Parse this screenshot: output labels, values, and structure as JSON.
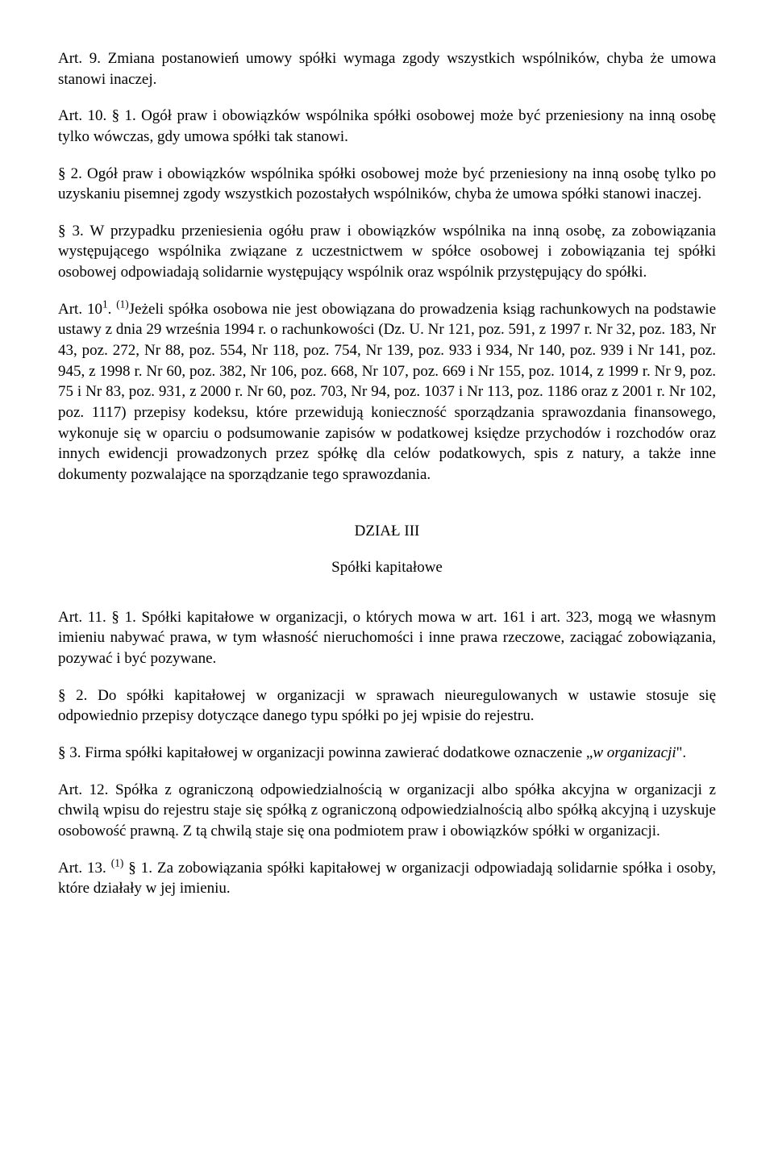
{
  "p1": "Art. 9. Zmiana postanowień umowy spółki wymaga zgody wszystkich wspólników, chyba że umowa stanowi inaczej.",
  "p2": "Art. 10. § 1. Ogół praw i obowiązków wspólnika spółki osobowej może być przeniesiony na inną osobę tylko wówczas, gdy umowa spółki tak stanowi.",
  "p3": "§ 2. Ogół praw i obowiązków wspólnika spółki osobowej może być przeniesiony na inną osobę tylko po uzyskaniu pisemnej zgody wszystkich pozostałych wspólników, chyba że umowa spółki stanowi inaczej.",
  "p4": "§ 3. W przypadku przeniesienia ogółu praw i obowiązków wspólnika na inną osobę, za zobowiązania występującego wspólnika związane z uczestnictwem w spółce osobowej i zobowiązania tej spółki osobowej odpowiadają solidarnie występujący wspólnik oraz wspólnik przystępujący do spółki.",
  "p5a": "Art. 10",
  "p5sup": "1",
  "p5b": ". ",
  "p5sup2": "(1)",
  "p5c": "Jeżeli spółka osobowa nie jest obowiązana do prowadzenia ksiąg rachunkowych na podstawie ustawy z dnia 29 września 1994 r. o rachunkowości (Dz. U. Nr 121, poz. 591, z 1997 r. Nr 32, poz. 183, Nr 43, poz. 272, Nr 88, poz. 554, Nr 118, poz. 754, Nr 139, poz. 933 i 934, Nr 140, poz. 939 i Nr 141, poz. 945, z 1998 r. Nr 60, poz. 382, Nr 106, poz. 668, Nr 107, poz. 669 i Nr 155, poz. 1014, z 1999 r. Nr 9, poz. 75 i Nr 83, poz. 931, z 2000 r. Nr 60, poz. 703, Nr 94, poz. 1037 i Nr 113, poz. 1186 oraz z 2001 r. Nr 102, poz. 1117) przepisy kodeksu, które przewidują konieczność sporządzania sprawozdania finansowego, wykonuje się w oparciu o podsumowanie zapisów w podatkowej księdze przychodów i rozchodów oraz innych ewidencji prowadzonych przez spółkę dla celów podatkowych, spis z natury, a także inne dokumenty pozwalające na sporządzanie tego sprawozdania.",
  "h1": "DZIAŁ III",
  "h2": "Spółki kapitałowe",
  "p6": "Art. 11. § 1. Spółki kapitałowe w organizacji, o których mowa w art. 161 i art. 323, mogą we własnym imieniu nabywać prawa, w tym własność nieruchomości i inne prawa rzeczowe, zaciągać zobowiązania, pozywać i być pozywane.",
  "p7": "§ 2. Do spółki kapitałowej w organizacji w sprawach nieuregulowanych w ustawie stosuje się odpowiednio przepisy dotyczące danego typu spółki po jej wpisie do rejestru.",
  "p8a": "§ 3. Firma spółki kapitałowej w organizacji powinna zawierać dodatkowe oznaczenie „",
  "p8i": "w organizacji",
  "p8b": "\".",
  "p9": "Art. 12. Spółka z ograniczoną odpowiedzialnością w organizacji albo spółka akcyjna w organizacji z chwilą wpisu do rejestru staje się spółką z ograniczoną odpowiedzialnością albo spółką akcyjną i uzyskuje osobowość prawną. Z tą chwilą staje się ona podmiotem praw i obowiązków spółki w organizacji.",
  "p10a": "Art. 13. ",
  "p10sup": "(1)",
  "p10b": " § 1. Za zobowiązania spółki kapitałowej w organizacji odpowiadają solidarnie spółka i osoby, które działały w jej imieniu."
}
